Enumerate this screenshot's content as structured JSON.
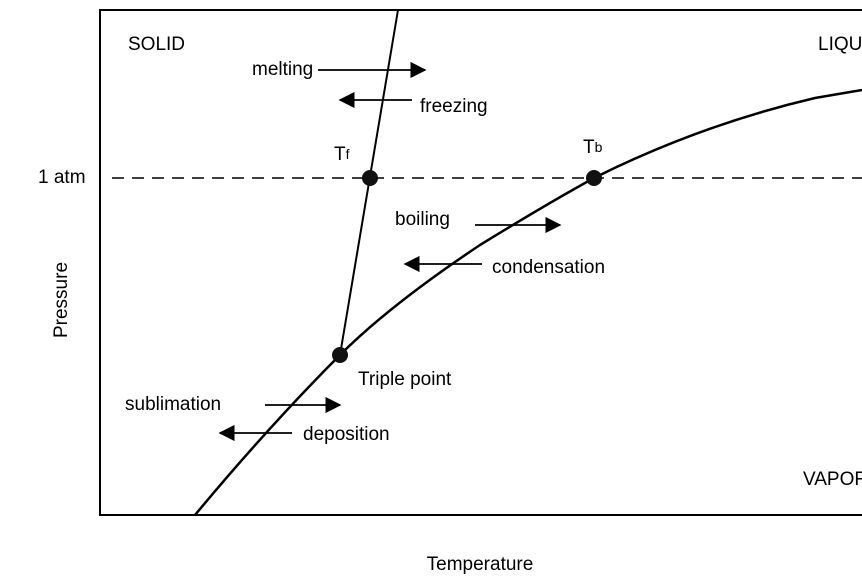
{
  "diagram": {
    "regions": {
      "solid": "SOLID",
      "liquid": "LIQUID",
      "vapor": "VAPOR"
    },
    "axes": {
      "y_label": "Pressure",
      "x_label": "Temperature",
      "reference_line": "1 atm"
    },
    "points": {
      "freezing_point": {
        "label": "T",
        "sub": "f"
      },
      "boiling_point": {
        "label": "T",
        "sub": "b"
      },
      "triple_point": "Triple point"
    },
    "transitions": {
      "melting": "melting",
      "freezing": "freezing",
      "boiling": "boiling",
      "condensation": "condensation",
      "sublimation": "sublimation",
      "deposition": "deposition"
    }
  }
}
